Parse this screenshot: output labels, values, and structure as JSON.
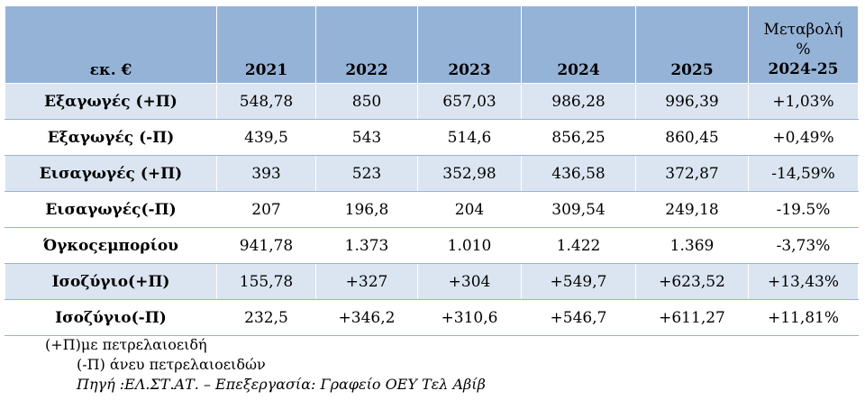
{
  "table": {
    "header": {
      "unit": "εκ. €",
      "years": [
        "2021",
        "2022",
        "2023",
        "2024",
        "2025"
      ],
      "change": [
        "Μεταβολή",
        "%",
        "2024-25"
      ]
    },
    "rows": [
      {
        "label": "Εξαγωγές (+Π)",
        "cells": [
          "548,78",
          "850",
          "657,03",
          "986,28",
          "996,39",
          "+1,03%"
        ],
        "shaded": true
      },
      {
        "label": "Εξαγωγές (-Π)",
        "cells": [
          "439,5",
          "543",
          "514,6",
          "856,25",
          "860,45",
          "+0,49%"
        ],
        "shaded": false
      },
      {
        "label": "Εισαγωγές (+Π)",
        "cells": [
          "393",
          "523",
          "352,98",
          "436,58",
          "372,87",
          "-14,59%"
        ],
        "shaded": true
      },
      {
        "label": "Εισαγωγές(-Π)",
        "cells": [
          "207",
          "196,8",
          "204",
          "309,54",
          "249,18",
          "-19.5%"
        ],
        "shaded": false
      },
      {
        "label": "Όγκοςεμπορίου",
        "cells": [
          "941,78",
          "1.373",
          "1.010",
          "1.422",
          "1.369",
          "-3,73%"
        ],
        "shaded": false
      },
      {
        "label": "Ισοζύγιο(+Π)",
        "cells": [
          "155,78",
          "+327",
          "+304",
          "+549,7",
          "+623,52",
          "+13,43%"
        ],
        "shaded": true
      },
      {
        "label": "Ισοζύγιο(-Π)",
        "cells": [
          "232,5",
          "+346,2",
          "+310,6",
          "+546,7",
          "+611,27",
          "+11,81%"
        ],
        "shaded": false
      }
    ]
  },
  "notes": [
    "(+Π)με πετρελαιοειδή",
    "(-Π) άνευ πετρελαιοειδών",
    "Πηγή :ΕΛ.ΣΤ.ΑΤ. – Επεξεργασία: Γραφείο ΟΕΥ Τελ Αβίβ"
  ]
}
